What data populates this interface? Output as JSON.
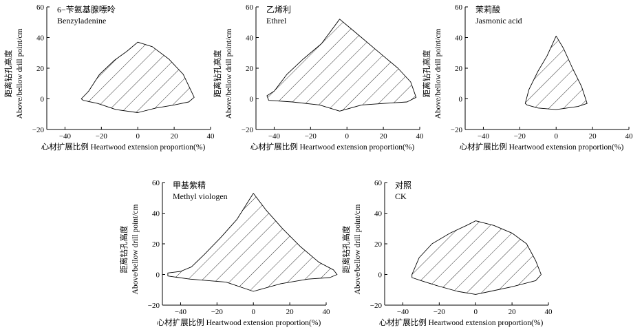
{
  "chart_data": [
    {
      "type": "area",
      "title_cn": "6−苄氨基腺嘌呤",
      "title_en": "Benzyladenine",
      "xlabel": "心材扩展比例 Heartwood extension proportion(%)",
      "ylabel_cn": "距离钻孔高度",
      "ylabel_en": "Above/bellow drill point/cm",
      "xlim": [
        -50,
        40
      ],
      "ylim": [
        -20,
        60
      ],
      "xticks": [
        -40,
        -20,
        0,
        20,
        40
      ],
      "yticks": [
        -20,
        0,
        20,
        40,
        60
      ],
      "fill": "hatched",
      "boundary": [
        [
          -31,
          0
        ],
        [
          -27,
          5
        ],
        [
          -21,
          16
        ],
        [
          -13,
          25
        ],
        [
          -6,
          31
        ],
        [
          0,
          37
        ],
        [
          8,
          34
        ],
        [
          17,
          26
        ],
        [
          25,
          16
        ],
        [
          31,
          1
        ],
        [
          28,
          -2
        ],
        [
          20,
          -4
        ],
        [
          10,
          -6
        ],
        [
          0,
          -9
        ],
        [
          -12,
          -7
        ],
        [
          -22,
          -3
        ],
        [
          -30,
          -1
        ]
      ]
    },
    {
      "type": "area",
      "title_cn": "乙烯利",
      "title_en": "Ethrel",
      "xlabel": "心材扩展比例 Heartwood extension proportion(%)",
      "ylabel_cn": "距离钻孔高度",
      "ylabel_en": "Above/bellow drill point/cm",
      "xlim": [
        -50,
        40
      ],
      "ylim": [
        -20,
        60
      ],
      "xticks": [
        -40,
        -20,
        0,
        20,
        40
      ],
      "yticks": [
        -20,
        0,
        20,
        40,
        60
      ],
      "fill": "hatched",
      "boundary": [
        [
          -44,
          2
        ],
        [
          -40,
          5
        ],
        [
          -33,
          16
        ],
        [
          -24,
          26
        ],
        [
          -14,
          36
        ],
        [
          -4,
          52
        ],
        [
          8,
          40
        ],
        [
          18,
          30
        ],
        [
          28,
          20
        ],
        [
          35,
          11
        ],
        [
          38,
          1
        ],
        [
          33,
          -2
        ],
        [
          20,
          -3
        ],
        [
          8,
          -4
        ],
        [
          -4,
          -8
        ],
        [
          -15,
          -4
        ],
        [
          -30,
          -2
        ],
        [
          -43,
          -1
        ]
      ]
    },
    {
      "type": "area",
      "title_cn": "茉莉酸",
      "title_en": "Jasmonic acid",
      "xlabel": "心材扩展比例 Heartwood extension proportion(%)",
      "ylabel_cn": "距离钻孔高度",
      "ylabel_en": "Above/bellow drill point/cm",
      "xlim": [
        -50,
        40
      ],
      "ylim": [
        -20,
        60
      ],
      "xticks": [
        -40,
        -20,
        0,
        20,
        40
      ],
      "yticks": [
        -20,
        0,
        20,
        40,
        60
      ],
      "fill": "hatched",
      "boundary": [
        [
          -17,
          -3
        ],
        [
          -15,
          6
        ],
        [
          -10,
          18
        ],
        [
          -5,
          28
        ],
        [
          0,
          41
        ],
        [
          4,
          33
        ],
        [
          9,
          20
        ],
        [
          14,
          8
        ],
        [
          17,
          -3
        ],
        [
          12,
          -5
        ],
        [
          0,
          -7
        ],
        [
          -10,
          -6
        ],
        [
          -16,
          -4
        ]
      ]
    },
    {
      "type": "area",
      "title_cn": "甲基紫精",
      "title_en": "Methyl viologen",
      "xlabel": "心材扩展比例 Heartwood extension proportion(%)",
      "ylabel_cn": "距离钻孔高度",
      "ylabel_en": "Above/bellow drill point/cm",
      "xlim": [
        -50,
        40
      ],
      "ylim": [
        -20,
        60
      ],
      "xticks": [
        -40,
        -20,
        0,
        20,
        40
      ],
      "yticks": [
        -20,
        0,
        20,
        40,
        60
      ],
      "fill": "hatched",
      "boundary": [
        [
          -47,
          1
        ],
        [
          -40,
          2
        ],
        [
          -34,
          5
        ],
        [
          -27,
          13
        ],
        [
          -18,
          24
        ],
        [
          -9,
          36
        ],
        [
          0,
          53
        ],
        [
          7,
          42
        ],
        [
          16,
          30
        ],
        [
          26,
          18
        ],
        [
          36,
          8
        ],
        [
          44,
          3
        ],
        [
          46,
          0
        ],
        [
          42,
          -2
        ],
        [
          30,
          -3
        ],
        [
          15,
          -6
        ],
        [
          0,
          -11
        ],
        [
          -15,
          -5
        ],
        [
          -35,
          -3
        ],
        [
          -47,
          -1
        ]
      ]
    },
    {
      "type": "area",
      "title_cn": "对照",
      "title_en": "CK",
      "xlabel": "心材扩展比例 Heartwood extension proportion(%)",
      "ylabel_cn": "距离钻孔高度",
      "ylabel_en": "Above/bellow drill point/cm",
      "xlim": [
        -50,
        40
      ],
      "ylim": [
        -20,
        60
      ],
      "xticks": [
        -40,
        -20,
        0,
        20,
        40
      ],
      "yticks": [
        -20,
        0,
        20,
        40,
        60
      ],
      "fill": "hatched",
      "boundary": [
        [
          -35,
          0
        ],
        [
          -31,
          11
        ],
        [
          -24,
          20
        ],
        [
          -14,
          27
        ],
        [
          -5,
          32
        ],
        [
          0,
          35
        ],
        [
          10,
          32
        ],
        [
          20,
          27
        ],
        [
          28,
          20
        ],
        [
          33,
          9
        ],
        [
          36,
          0
        ],
        [
          33,
          -4
        ],
        [
          20,
          -8
        ],
        [
          8,
          -11
        ],
        [
          0,
          -13
        ],
        [
          -10,
          -11
        ],
        [
          -22,
          -7
        ],
        [
          -30,
          -4
        ],
        [
          -35,
          -2
        ]
      ]
    }
  ]
}
